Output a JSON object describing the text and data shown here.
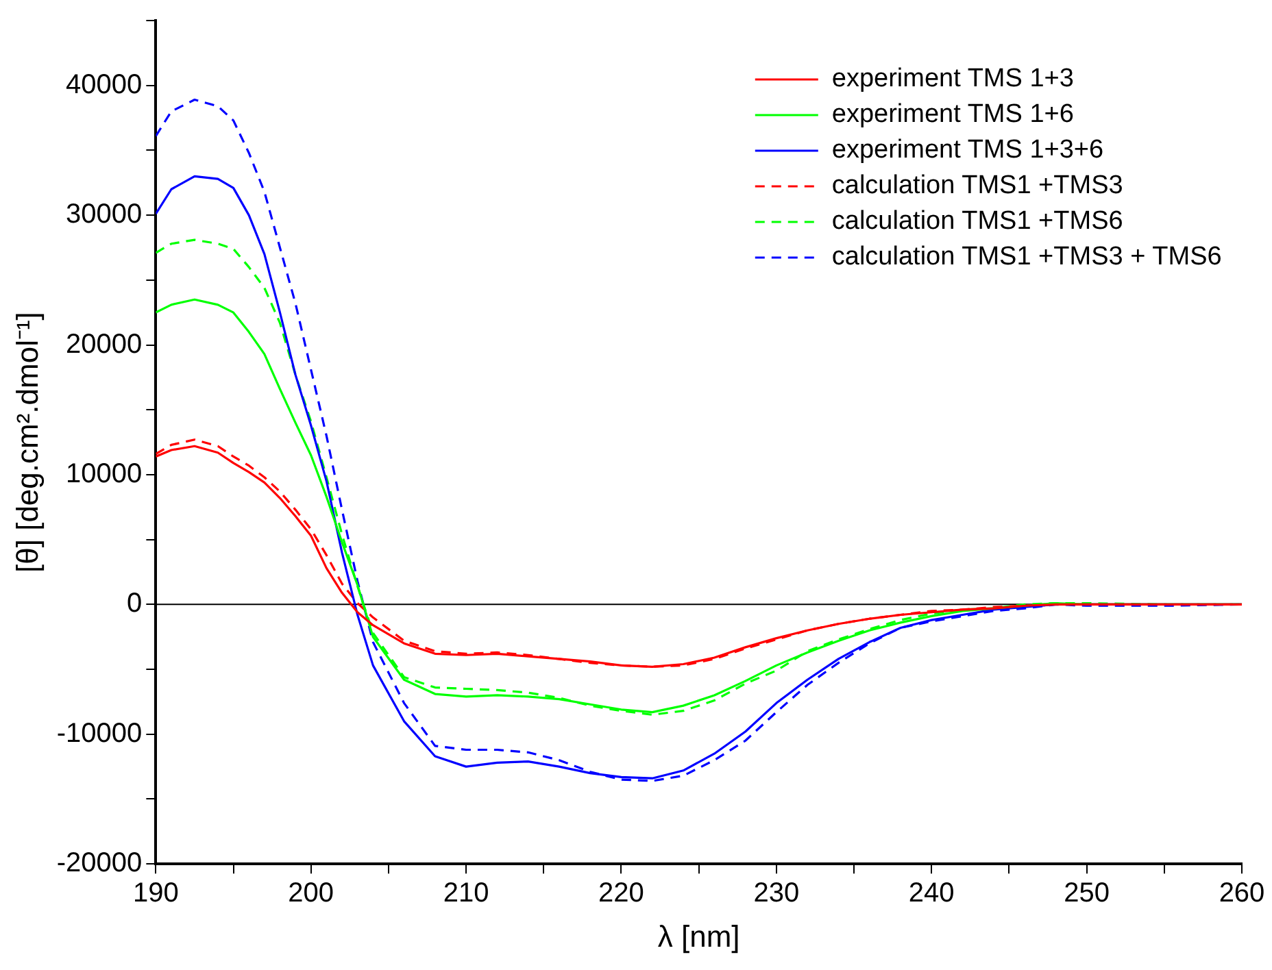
{
  "chart_data": {
    "type": "line",
    "xlabel": "λ [nm]",
    "ylabel": "[θ] [deg.cm².dmol⁻¹]",
    "x": [
      190,
      191,
      192.5,
      194,
      195,
      196,
      197,
      198,
      199,
      200,
      201,
      202,
      203,
      204,
      206,
      208,
      210,
      212,
      214,
      216,
      218,
      220,
      222,
      224,
      226,
      228,
      230,
      232,
      234,
      236,
      238,
      240,
      242,
      244,
      246,
      248,
      250,
      255,
      260
    ],
    "series": [
      {
        "name": "experiment TMS 1+3",
        "color": "#ff0000",
        "line_style": "solid",
        "values": [
          11400,
          11900,
          12200,
          11700,
          10900,
          10200,
          9400,
          8200,
          6800,
          5300,
          2800,
          900,
          -600,
          -1600,
          -3000,
          -3800,
          -3900,
          -3800,
          -4000,
          -4200,
          -4400,
          -4700,
          -4800,
          -4600,
          -4100,
          -3300,
          -2600,
          -2000,
          -1500,
          -1100,
          -800,
          -600,
          -400,
          -300,
          -100,
          0,
          0,
          0,
          0
        ]
      },
      {
        "name": "experiment TMS 1+6",
        "color": "#00ff00",
        "line_style": "solid",
        "values": [
          22500,
          23100,
          23500,
          23100,
          22500,
          21000,
          19300,
          16600,
          14000,
          11500,
          8300,
          4800,
          1500,
          -2500,
          -5800,
          -6900,
          -7100,
          -7000,
          -7100,
          -7300,
          -7700,
          -8100,
          -8300,
          -7800,
          -7000,
          -5900,
          -4700,
          -3700,
          -2800,
          -2000,
          -1400,
          -900,
          -500,
          -300,
          -100,
          100,
          0,
          0,
          0
        ]
      },
      {
        "name": "experiment TMS 1+3+6",
        "color": "#0000ff",
        "line_style": "solid",
        "values": [
          30100,
          32000,
          33000,
          32800,
          32100,
          30000,
          27000,
          22500,
          17700,
          13800,
          9500,
          4000,
          -800,
          -4700,
          -9000,
          -11700,
          -12500,
          -12200,
          -12100,
          -12500,
          -13000,
          -13300,
          -13400,
          -12800,
          -11500,
          -9800,
          -7600,
          -5800,
          -4200,
          -2900,
          -1800,
          -1200,
          -800,
          -400,
          -200,
          0,
          0,
          0,
          0
        ]
      },
      {
        "name": "calculation TMS1 +TMS3",
        "color": "#ff0000",
        "line_style": "dashed",
        "values": [
          11600,
          12300,
          12700,
          12200,
          11400,
          10700,
          9800,
          8700,
          7300,
          5800,
          3800,
          1600,
          100,
          -1000,
          -2800,
          -3600,
          -3800,
          -3700,
          -3900,
          -4200,
          -4500,
          -4700,
          -4800,
          -4700,
          -4200,
          -3400,
          -2700,
          -2000,
          -1500,
          -1100,
          -800,
          -500,
          -400,
          -200,
          -100,
          0,
          0,
          0,
          0
        ]
      },
      {
        "name": "calculation TMS1 +TMS6",
        "color": "#00ff00",
        "line_style": "dashed",
        "values": [
          27100,
          27800,
          28100,
          27800,
          27400,
          26000,
          24400,
          21700,
          17700,
          14100,
          9800,
          5400,
          1400,
          -2200,
          -5600,
          -6400,
          -6500,
          -6600,
          -6800,
          -7200,
          -7800,
          -8200,
          -8500,
          -8200,
          -7400,
          -6100,
          -5100,
          -3600,
          -2700,
          -1900,
          -1200,
          -700,
          -400,
          -300,
          0,
          100,
          100,
          0,
          0
        ]
      },
      {
        "name": "calculation TMS1 +TMS3 + TMS6",
        "color": "#0000ff",
        "line_style": "dashed",
        "values": [
          36100,
          38000,
          38900,
          38400,
          37300,
          34800,
          31800,
          27500,
          23200,
          18100,
          13000,
          7300,
          1800,
          -2900,
          -7600,
          -10900,
          -11200,
          -11200,
          -11400,
          -12000,
          -12900,
          -13500,
          -13600,
          -13200,
          -12000,
          -10500,
          -8300,
          -6200,
          -4500,
          -3000,
          -1800,
          -1300,
          -900,
          -500,
          -300,
          0,
          -100,
          -100,
          0
        ]
      }
    ],
    "xlim": [
      190,
      260
    ],
    "xticks": [
      190,
      {
        "value": 195,
        "label": null
      },
      200,
      {
        "value": 205,
        "label": null
      },
      210,
      {
        "value": 215,
        "label": null
      },
      220,
      {
        "value": 225,
        "label": null
      },
      230,
      {
        "value": 235,
        "label": null
      },
      240,
      {
        "value": 245,
        "label": null
      },
      250,
      {
        "value": 255,
        "label": null
      },
      260
    ],
    "ylim": [
      -20000,
      45000
    ],
    "yticks": [
      -20000,
      {
        "value": -15000,
        "label": null
      },
      -10000,
      {
        "value": -5000,
        "label": null
      },
      0,
      {
        "value": 5000,
        "label": null
      },
      10000,
      {
        "value": 15000,
        "label": null
      },
      20000,
      {
        "value": 25000,
        "label": null
      },
      30000,
      {
        "value": 35000,
        "label": null
      },
      40000,
      {
        "value": 45000,
        "label": null
      }
    ],
    "ref_lines": [
      {
        "axis": "y",
        "value": 0,
        "label": null,
        "color": "#000000"
      }
    ],
    "grid": false,
    "legend": "top right",
    "marker": "none"
  }
}
